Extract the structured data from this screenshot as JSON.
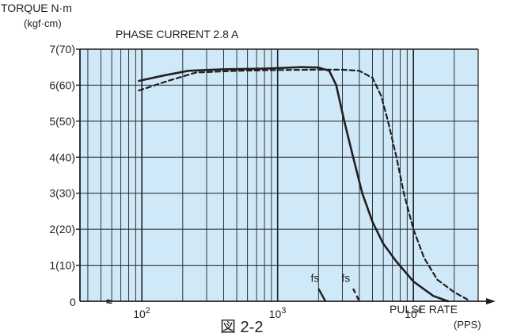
{
  "chart_data": {
    "type": "line",
    "title": "PHASE CURRENT  2.8  A",
    "ylabel": "TORQUE N·m",
    "ylabel_unit": "(kgf·cm)",
    "xlabel": "PULSE RATE",
    "xlabel_unit": "(PPS)",
    "origin_label": "0",
    "x_scale": "log",
    "x_range": [
      35,
      30000
    ],
    "ylim": [
      0,
      7
    ],
    "grid": true,
    "plot_background": "#cfe9f8",
    "line_color": "#231f20",
    "axis_break_mark": "≈",
    "y_ticks": [
      {
        "value": 1,
        "label": "1(10)"
      },
      {
        "value": 2,
        "label": "2(20)"
      },
      {
        "value": 3,
        "label": "3(30)"
      },
      {
        "value": 4,
        "label": "4(40)"
      },
      {
        "value": 5,
        "label": "5(50)"
      },
      {
        "value": 6,
        "label": "6(60)"
      },
      {
        "value": 7,
        "label": "7(70)"
      }
    ],
    "x_ticks": [
      {
        "value": 100,
        "label": "10",
        "exp": "2"
      },
      {
        "value": 1000,
        "label": "10",
        "exp": "3"
      },
      {
        "value": 10000,
        "label": "10",
        "exp": "4"
      }
    ],
    "series": [
      {
        "style": "solid",
        "x": [
          95,
          150,
          220,
          400,
          800,
          1500,
          2000,
          2400,
          2700,
          3100,
          3600,
          4200,
          5000,
          6000,
          7500,
          10000,
          14000,
          18000
        ],
        "y": [
          6.12,
          6.28,
          6.4,
          6.44,
          6.46,
          6.5,
          6.49,
          6.4,
          6.0,
          5.0,
          4.0,
          3.0,
          2.2,
          1.6,
          1.1,
          0.55,
          0.15,
          0.0
        ]
      },
      {
        "style": "dashed",
        "x": [
          95,
          150,
          250,
          500,
          1000,
          2000,
          3000,
          4000,
          5000,
          5800,
          6500,
          7500,
          8500,
          10000,
          12000,
          15000,
          20000,
          25000
        ],
        "y": [
          5.85,
          6.1,
          6.35,
          6.4,
          6.42,
          6.43,
          6.43,
          6.4,
          6.2,
          5.7,
          5.0,
          4.0,
          3.0,
          2.0,
          1.2,
          0.6,
          0.25,
          0.05
        ]
      }
    ],
    "annotations": [
      {
        "text": "fs",
        "x": 1900,
        "y": 0.5
      },
      {
        "text": "fs",
        "x": 3200,
        "y": 0.5
      }
    ],
    "fs_markers": [
      {
        "x_top": 2000,
        "y_top": 0.35,
        "x_bottom": 2250,
        "y_bottom": 0
      },
      {
        "x_top": 3600,
        "y_top": 0.35,
        "x_bottom": 4000,
        "y_bottom": 0
      }
    ]
  },
  "caption": "図 2-2"
}
